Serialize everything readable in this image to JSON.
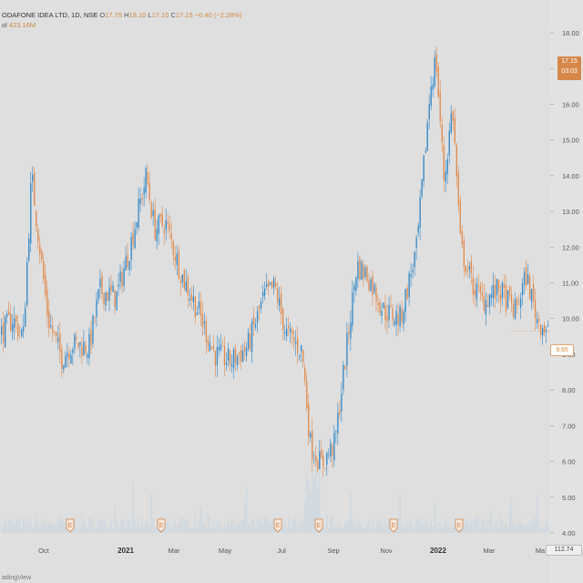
{
  "header": {
    "symbol_line": "ODAFONE IDEA LTD, 1D, NSE",
    "open_label": "O",
    "open": "17.75",
    "high_label": "H",
    "high": "18.10",
    "low_label": "L",
    "low": "17.10",
    "close_label": "C",
    "close": "17.15",
    "change": "−0.40 (−2.28%)",
    "vol_label": "ol",
    "volume": "423.16M"
  },
  "badges": {
    "price": "17.15",
    "countdown": "03:03",
    "last_price": "9.65",
    "vol_value": "112.74"
  },
  "watermark": "adingView",
  "colors": {
    "up": "#2e86c8",
    "down": "#e0894a",
    "volume": "#c7d4e0",
    "earnings": "#d2844a"
  },
  "chart_data": {
    "type": "candlestick",
    "title": "ODAFONE IDEA LTD, 1D, NSE",
    "y_ticks": [
      "18.00",
      "17.00",
      "16.00",
      "15.00",
      "14.00",
      "13.00",
      "12.00",
      "11.00",
      "10.00",
      "9.00",
      "8.00",
      "7.00",
      "6.00",
      "5.00",
      "4.00"
    ],
    "ylim": [
      3.6,
      18.3
    ],
    "x_ticks": [
      "Oct",
      "2021",
      "Mar",
      "May",
      "Jul",
      "Sep",
      "Nov",
      "2022",
      "Mar",
      "Ma"
    ],
    "x_tick_bold": [
      false,
      true,
      false,
      false,
      false,
      false,
      false,
      true,
      false,
      false
    ],
    "earnings_marker": "E",
    "earnings_count": 6,
    "close_path": [
      {
        "t": 0,
        "v": 9.6
      },
      {
        "t": 0.02,
        "v": 10.0
      },
      {
        "t": 0.04,
        "v": 9.5
      },
      {
        "t": 0.055,
        "v": 14.0
      },
      {
        "t": 0.07,
        "v": 12.0
      },
      {
        "t": 0.085,
        "v": 10.0
      },
      {
        "t": 0.11,
        "v": 8.9
      },
      {
        "t": 0.13,
        "v": 9.3
      },
      {
        "t": 0.16,
        "v": 9.2
      },
      {
        "t": 0.18,
        "v": 10.8
      },
      {
        "t": 0.21,
        "v": 10.6
      },
      {
        "t": 0.235,
        "v": 12.0
      },
      {
        "t": 0.265,
        "v": 14.0
      },
      {
        "t": 0.28,
        "v": 12.5
      },
      {
        "t": 0.3,
        "v": 12.7
      },
      {
        "t": 0.33,
        "v": 11.2
      },
      {
        "t": 0.36,
        "v": 10.2
      },
      {
        "t": 0.39,
        "v": 9.0
      },
      {
        "t": 0.42,
        "v": 8.8
      },
      {
        "t": 0.45,
        "v": 9.2
      },
      {
        "t": 0.48,
        "v": 10.6
      },
      {
        "t": 0.5,
        "v": 10.9
      },
      {
        "t": 0.52,
        "v": 9.6
      },
      {
        "t": 0.55,
        "v": 9.1
      },
      {
        "t": 0.565,
        "v": 6.5
      },
      {
        "t": 0.585,
        "v": 5.9
      },
      {
        "t": 0.61,
        "v": 6.5
      },
      {
        "t": 0.63,
        "v": 9.0
      },
      {
        "t": 0.65,
        "v": 11.5
      },
      {
        "t": 0.67,
        "v": 11.2
      },
      {
        "t": 0.7,
        "v": 10.2
      },
      {
        "t": 0.73,
        "v": 10.0
      },
      {
        "t": 0.76,
        "v": 12.0
      },
      {
        "t": 0.785,
        "v": 16.5
      },
      {
        "t": 0.795,
        "v": 17.3
      },
      {
        "t": 0.81,
        "v": 13.8
      },
      {
        "t": 0.825,
        "v": 16.0
      },
      {
        "t": 0.84,
        "v": 12.0
      },
      {
        "t": 0.86,
        "v": 11.0
      },
      {
        "t": 0.88,
        "v": 10.5
      },
      {
        "t": 0.91,
        "v": 10.8
      },
      {
        "t": 0.94,
        "v": 10.2
      },
      {
        "t": 0.96,
        "v": 11.2
      },
      {
        "t": 0.98,
        "v": 10.0
      },
      {
        "t": 1.0,
        "v": 9.65
      }
    ]
  }
}
